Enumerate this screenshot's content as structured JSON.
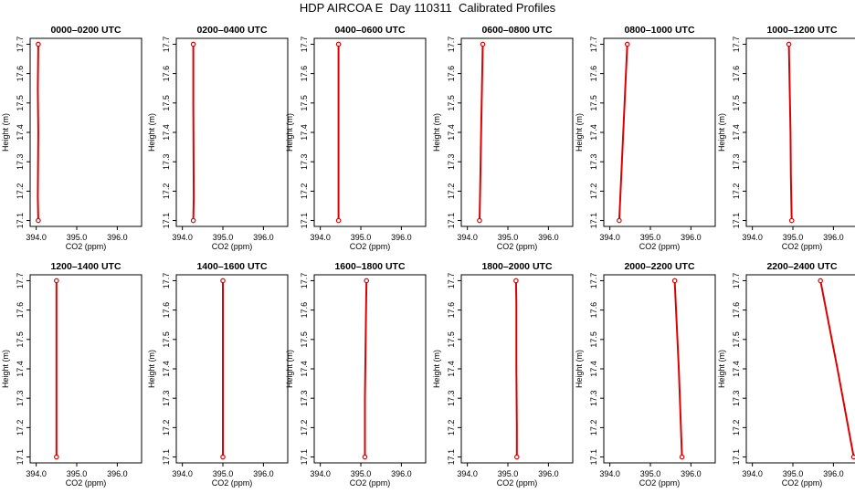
{
  "figure": {
    "title": "HDP AIRCOA E  Day 110311  Calibrated Profiles"
  },
  "colors": {
    "profile": "#dd0000",
    "axis": "#000000"
  },
  "chart_data": [
    {
      "type": "line",
      "title": "0000–0200 UTC",
      "xlabel": "CO2 (ppm)",
      "ylabel": "Height (m)",
      "xlim": [
        393.85,
        396.6
      ],
      "ylim": [
        17.08,
        17.72
      ],
      "x_ticks": [
        "394.0",
        "395.0",
        "396.0"
      ],
      "y_ticks": [
        "17.1",
        "17.2",
        "17.3",
        "17.4",
        "17.5",
        "17.6",
        "17.7"
      ],
      "x": [
        394.05,
        394.04,
        394.05,
        394.04,
        394.05
      ],
      "y": [
        17.1,
        17.18,
        17.4,
        17.55,
        17.7
      ],
      "markers": [
        {
          "x": 394.05,
          "y": 17.1
        },
        {
          "x": 394.05,
          "y": 17.7
        }
      ]
    },
    {
      "type": "line",
      "title": "0200–0400 UTC",
      "xlabel": "CO2 (ppm)",
      "ylabel": "Height (m)",
      "xlim": [
        393.85,
        396.6
      ],
      "ylim": [
        17.08,
        17.72
      ],
      "x_ticks": [
        "394.0",
        "395.0",
        "396.0"
      ],
      "y_ticks": [
        "17.1",
        "17.2",
        "17.3",
        "17.4",
        "17.5",
        "17.6",
        "17.7"
      ],
      "x": [
        394.27,
        394.28,
        394.27,
        394.27
      ],
      "y": [
        17.1,
        17.18,
        17.5,
        17.7
      ],
      "markers": [
        {
          "x": 394.27,
          "y": 17.1
        },
        {
          "x": 394.27,
          "y": 17.7
        }
      ]
    },
    {
      "type": "line",
      "title": "0400–0600 UTC",
      "xlabel": "CO2 (ppm)",
      "ylabel": "Height (m)",
      "xlim": [
        393.85,
        396.6
      ],
      "ylim": [
        17.08,
        17.72
      ],
      "x_ticks": [
        "394.0",
        "395.0",
        "396.0"
      ],
      "y_ticks": [
        "17.1",
        "17.2",
        "17.3",
        "17.4",
        "17.5",
        "17.6",
        "17.7"
      ],
      "x": [
        394.45,
        394.45,
        394.45
      ],
      "y": [
        17.1,
        17.4,
        17.7
      ],
      "markers": [
        {
          "x": 394.45,
          "y": 17.1
        },
        {
          "x": 394.45,
          "y": 17.7
        }
      ]
    },
    {
      "type": "line",
      "title": "0600–0800 UTC",
      "xlabel": "CO2 (ppm)",
      "ylabel": "Height (m)",
      "xlim": [
        393.85,
        396.6
      ],
      "ylim": [
        17.08,
        17.72
      ],
      "x_ticks": [
        "394.0",
        "395.0",
        "396.0"
      ],
      "y_ticks": [
        "17.1",
        "17.2",
        "17.3",
        "17.4",
        "17.5",
        "17.6",
        "17.7"
      ],
      "x": [
        394.3,
        394.32,
        394.34,
        394.36,
        394.38
      ],
      "y": [
        17.1,
        17.25,
        17.4,
        17.55,
        17.7
      ],
      "markers": [
        {
          "x": 394.3,
          "y": 17.1
        },
        {
          "x": 394.38,
          "y": 17.7
        }
      ]
    },
    {
      "type": "line",
      "title": "0800–1000 UTC",
      "xlabel": "CO2 (ppm)",
      "ylabel": "Height (m)",
      "xlim": [
        393.85,
        396.6
      ],
      "ylim": [
        17.08,
        17.72
      ],
      "x_ticks": [
        "394.0",
        "395.0",
        "396.0"
      ],
      "y_ticks": [
        "17.1",
        "17.2",
        "17.3",
        "17.4",
        "17.5",
        "17.6",
        "17.7"
      ],
      "x": [
        394.23,
        394.28,
        394.33,
        394.38,
        394.43
      ],
      "y": [
        17.1,
        17.25,
        17.4,
        17.55,
        17.7
      ],
      "markers": [
        {
          "x": 394.23,
          "y": 17.1
        },
        {
          "x": 394.43,
          "y": 17.7
        }
      ]
    },
    {
      "type": "line",
      "title": "1000–1200 UTC",
      "xlabel": "CO2 (ppm)",
      "ylabel": "Height (m)",
      "xlim": [
        393.85,
        396.6
      ],
      "ylim": [
        17.08,
        17.72
      ],
      "x_ticks": [
        "394.0",
        "395.0",
        "396.0"
      ],
      "y_ticks": [
        "17.1",
        "17.2",
        "17.3",
        "17.4",
        "17.5",
        "17.6",
        "17.7"
      ],
      "x": [
        394.97,
        394.95,
        394.94,
        394.92,
        394.9
      ],
      "y": [
        17.1,
        17.25,
        17.4,
        17.55,
        17.7
      ],
      "markers": [
        {
          "x": 394.97,
          "y": 17.1
        },
        {
          "x": 394.9,
          "y": 17.7
        }
      ]
    },
    {
      "type": "line",
      "title": "1200–1400 UTC",
      "xlabel": "CO2 (ppm)",
      "ylabel": "Height (m)",
      "xlim": [
        393.85,
        396.6
      ],
      "ylim": [
        17.08,
        17.72
      ],
      "x_ticks": [
        "394.0",
        "395.0",
        "396.0"
      ],
      "y_ticks": [
        "17.1",
        "17.2",
        "17.3",
        "17.4",
        "17.5",
        "17.6",
        "17.7"
      ],
      "x": [
        394.5,
        394.5,
        394.5
      ],
      "y": [
        17.1,
        17.42,
        17.7
      ],
      "markers": [
        {
          "x": 394.5,
          "y": 17.1
        },
        {
          "x": 394.5,
          "y": 17.7
        }
      ]
    },
    {
      "type": "line",
      "title": "1400–1600 UTC",
      "xlabel": "CO2 (ppm)",
      "ylabel": "Height (m)",
      "xlim": [
        393.85,
        396.6
      ],
      "ylim": [
        17.08,
        17.72
      ],
      "x_ticks": [
        "394.0",
        "395.0",
        "396.0"
      ],
      "y_ticks": [
        "17.1",
        "17.2",
        "17.3",
        "17.4",
        "17.5",
        "17.6",
        "17.7"
      ],
      "x": [
        395.0,
        395.0,
        395.0
      ],
      "y": [
        17.1,
        17.4,
        17.7
      ],
      "markers": [
        {
          "x": 395.0,
          "y": 17.1
        },
        {
          "x": 395.0,
          "y": 17.7
        }
      ]
    },
    {
      "type": "line",
      "title": "1600–1800 UTC",
      "xlabel": "CO2 (ppm)",
      "ylabel": "Height (m)",
      "xlim": [
        393.85,
        396.6
      ],
      "ylim": [
        17.08,
        17.72
      ],
      "x_ticks": [
        "394.0",
        "395.0",
        "396.0"
      ],
      "y_ticks": [
        "17.1",
        "17.2",
        "17.3",
        "17.4",
        "17.5",
        "17.6",
        "17.7"
      ],
      "x": [
        395.1,
        395.1,
        395.12,
        395.13,
        395.14
      ],
      "y": [
        17.1,
        17.3,
        17.5,
        17.62,
        17.7
      ],
      "markers": [
        {
          "x": 395.1,
          "y": 17.1
        },
        {
          "x": 395.14,
          "y": 17.7
        }
      ]
    },
    {
      "type": "line",
      "title": "1800–2000 UTC",
      "xlabel": "CO2 (ppm)",
      "ylabel": "Height (m)",
      "xlim": [
        393.85,
        396.6
      ],
      "ylim": [
        17.08,
        17.72
      ],
      "x_ticks": [
        "394.0",
        "395.0",
        "396.0"
      ],
      "y_ticks": [
        "17.1",
        "17.2",
        "17.3",
        "17.4",
        "17.5",
        "17.6",
        "17.7"
      ],
      "x": [
        395.22,
        395.22,
        395.21,
        395.21,
        395.2
      ],
      "y": [
        17.1,
        17.2,
        17.4,
        17.62,
        17.7
      ],
      "markers": [
        {
          "x": 395.22,
          "y": 17.1
        },
        {
          "x": 395.2,
          "y": 17.7
        }
      ]
    },
    {
      "type": "line",
      "title": "2000–2200 UTC",
      "xlabel": "CO2 (ppm)",
      "ylabel": "Height (m)",
      "xlim": [
        393.85,
        396.6
      ],
      "ylim": [
        17.08,
        17.72
      ],
      "x_ticks": [
        "394.0",
        "395.0",
        "396.0"
      ],
      "y_ticks": [
        "17.1",
        "17.2",
        "17.3",
        "17.4",
        "17.5",
        "17.6",
        "17.7"
      ],
      "x": [
        395.78,
        395.7,
        395.6
      ],
      "y": [
        17.1,
        17.4,
        17.7
      ],
      "markers": [
        {
          "x": 395.78,
          "y": 17.1
        },
        {
          "x": 395.6,
          "y": 17.7
        }
      ]
    },
    {
      "type": "line",
      "title": "2200–2400 UTC",
      "xlabel": "CO2 (ppm)",
      "ylabel": "Height (m)",
      "xlim": [
        393.85,
        396.6
      ],
      "ylim": [
        17.08,
        17.72
      ],
      "x_ticks": [
        "394.0",
        "395.0",
        "396.0"
      ],
      "y_ticks": [
        "17.1",
        "17.2",
        "17.3",
        "17.4",
        "17.5",
        "17.6",
        "17.7"
      ],
      "x": [
        396.5,
        396.1,
        395.68
      ],
      "y": [
        17.1,
        17.4,
        17.7
      ],
      "markers": [
        {
          "x": 396.5,
          "y": 17.1
        },
        {
          "x": 395.68,
          "y": 17.7
        }
      ]
    }
  ]
}
